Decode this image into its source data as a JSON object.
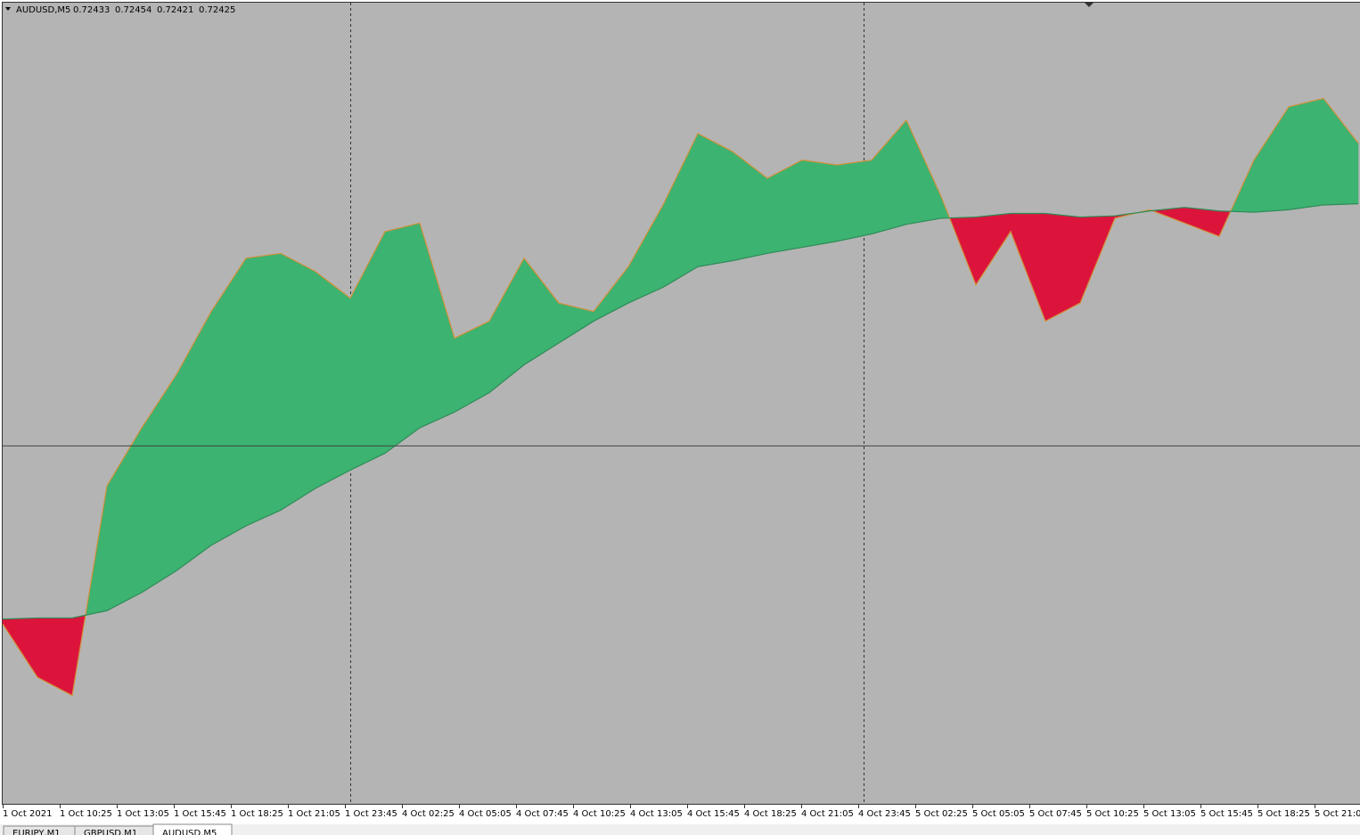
{
  "chart_data": {
    "type": "ma-fill",
    "title": "AUDUSD,M5",
    "ohlc": [
      0.72433,
      0.72454,
      0.72421,
      0.72425
    ],
    "ylim": [
      0.7188,
      0.7254
    ],
    "hline": 0.72174,
    "fill_up": "#3cb371",
    "fill_down": "#dc143c",
    "series": [
      {
        "color": "#d2913a",
        "values": [
          0.72027,
          0.71983,
          0.71968,
          0.72141,
          0.72189,
          0.72233,
          0.72285,
          0.72329,
          0.72333,
          0.72318,
          0.72296,
          0.72351,
          0.72358,
          0.72263,
          0.72277,
          0.72329,
          0.72292,
          0.72285,
          0.72322,
          0.72373,
          0.72432,
          0.72417,
          0.72395,
          0.7241,
          0.72406,
          0.7241,
          0.72443,
          0.7238,
          0.72307,
          0.72351,
          0.72277,
          0.72292,
          0.72362,
          0.72369,
          0.72358,
          0.72347,
          0.7241,
          0.72454,
          0.72461,
          0.72424
        ]
      },
      {
        "color": "#2e8b57",
        "values": [
          0.72031,
          0.72032,
          0.72032,
          0.72038,
          0.72053,
          0.72071,
          0.72092,
          0.72108,
          0.72121,
          0.72139,
          0.72154,
          0.72168,
          0.72189,
          0.72202,
          0.72218,
          0.72241,
          0.72259,
          0.72277,
          0.72292,
          0.72305,
          0.72322,
          0.72327,
          0.72333,
          0.72338,
          0.72343,
          0.72349,
          0.72357,
          0.72362,
          0.72363,
          0.72366,
          0.72366,
          0.72363,
          0.72364,
          0.72368,
          0.72371,
          0.72368,
          0.72367,
          0.72369,
          0.72373,
          0.72374
        ]
      }
    ],
    "x_labels": [
      "1 Oct 2021",
      "1 Oct 10:25",
      "1 Oct 13:05",
      "1 Oct 15:45",
      "1 Oct 18:25",
      "1 Oct 21:05",
      "1 Oct 23:45",
      "4 Oct 02:25",
      "4 Oct 05:05",
      "4 Oct 07:45",
      "4 Oct 10:25",
      "4 Oct 13:05",
      "4 Oct 15:45",
      "4 Oct 18:25",
      "4 Oct 21:05",
      "4 Oct 23:45",
      "5 Oct 02:25",
      "5 Oct 05:05",
      "5 Oct 07:45",
      "5 Oct 10:25",
      "5 Oct 13:05",
      "5 Oct 15:45",
      "5 Oct 18:25",
      "5 Oct 21:05"
    ]
  },
  "tabs": [
    "EURJPY,M1",
    "GBPUSD,M1",
    "AUDUSD,M5"
  ]
}
